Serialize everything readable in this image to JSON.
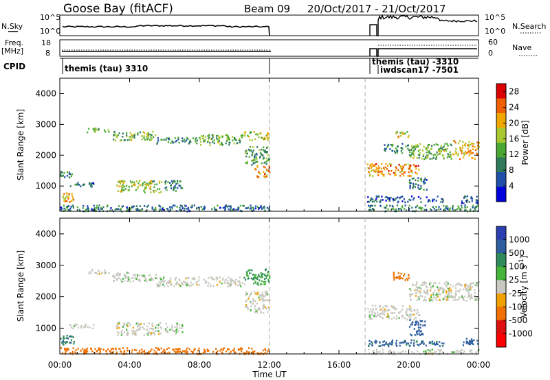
{
  "header": {
    "station": "Goose Bay (fitACF)",
    "beam": "Beam 09",
    "dates": "20/Oct/2017 - 21/Oct/2017"
  },
  "strip_noise": {
    "left_label": "N.Sky",
    "left_ticks": [
      "10^5",
      "10^0"
    ],
    "right_label": "N.Search",
    "right_ticks": [
      "10^5",
      "10^0"
    ]
  },
  "strip_freq": {
    "left_label_1": "Freq.",
    "left_label_2": "[MHz]",
    "left_ticks": [
      "18",
      "8"
    ],
    "right_label": "Nave",
    "right_ticks": [
      "60",
      "0"
    ]
  },
  "cpid": {
    "label": "CPID",
    "entries": [
      "themis (tau) 3310",
      "themis (tau) -3310",
      "iwdscan17 -7501"
    ]
  },
  "colors": {
    "power": [
      "#0000dd",
      "#1f4fa8",
      "#2f7a5a",
      "#4aa832",
      "#a8c832",
      "#f0a800",
      "#f06000",
      "#dd0000"
    ],
    "velocity": [
      "#2a3fb0",
      "#2f5ea0",
      "#2e8a5a",
      "#44b53a",
      "#c8c8c0",
      "#c8c8c0",
      "#f0a000",
      "#f07000",
      "#dd1010",
      "#ff0000"
    ]
  },
  "chart_data": [
    {
      "type": "heatmap",
      "title": "",
      "xlabel": "",
      "ylabel": "Slant Range [km]",
      "x_ticks": [
        "00:00",
        "04:00",
        "08:00",
        "12:00",
        "16:00",
        "20:00",
        "00:00"
      ],
      "xlim": [
        0,
        24
      ],
      "y_ticks": [
        "1000",
        "2000",
        "3000",
        "4000"
      ],
      "ylim": [
        180,
        4500
      ],
      "data_gap": [
        12,
        17.5
      ],
      "colorbar": {
        "label": "Power [dB]",
        "ticks": [
          "4",
          "8",
          "12",
          "16",
          "20",
          "24",
          "28"
        ],
        "range": [
          0,
          30
        ]
      },
      "regions": [
        {
          "t": [
            1.5,
            2.8
          ],
          "r": [
            2750,
            2900
          ],
          "v": 12
        },
        {
          "t": [
            3.0,
            5.5
          ],
          "r": [
            2500,
            2800
          ],
          "v": 14
        },
        {
          "t": [
            5.5,
            8.0
          ],
          "r": [
            2400,
            2600
          ],
          "v": 10
        },
        {
          "t": [
            8.0,
            10.5
          ],
          "r": [
            2350,
            2700
          ],
          "v": 14
        },
        {
          "t": [
            10.5,
            12.0
          ],
          "r": [
            2500,
            2800
          ],
          "v": 18
        },
        {
          "t": [
            10.6,
            12.0
          ],
          "r": [
            1700,
            2300
          ],
          "v": 12
        },
        {
          "t": [
            11.0,
            12.0
          ],
          "r": [
            1300,
            1700
          ],
          "v": 22
        },
        {
          "t": [
            0.0,
            0.7
          ],
          "r": [
            1300,
            1500
          ],
          "v": 10
        },
        {
          "t": [
            0.5,
            2.0
          ],
          "r": [
            1000,
            1150
          ],
          "v": 8
        },
        {
          "t": [
            3.2,
            5.8
          ],
          "r": [
            800,
            1200
          ],
          "v": 16
        },
        {
          "t": [
            6.0,
            7.0
          ],
          "r": [
            850,
            1200
          ],
          "v": 10
        },
        {
          "t": [
            0.0,
            0.8
          ],
          "r": [
            500,
            800
          ],
          "v": 20
        },
        {
          "t": [
            0.0,
            12.0
          ],
          "r": [
            200,
            400
          ],
          "v": 8
        },
        {
          "t": [
            17.6,
            20.6
          ],
          "r": [
            1350,
            1750
          ],
          "v": 22
        },
        {
          "t": [
            19.1,
            20.0
          ],
          "r": [
            2600,
            2800
          ],
          "v": 18
        },
        {
          "t": [
            18.5,
            20.0
          ],
          "r": [
            2100,
            2400
          ],
          "v": 10
        },
        {
          "t": [
            20.0,
            22.5
          ],
          "r": [
            1900,
            2400
          ],
          "v": 14
        },
        {
          "t": [
            22.5,
            24.0
          ],
          "r": [
            1900,
            2500
          ],
          "v": 20
        },
        {
          "t": [
            20.0,
            21.0
          ],
          "r": [
            900,
            1300
          ],
          "v": 8
        },
        {
          "t": [
            17.6,
            22.0
          ],
          "r": [
            500,
            700
          ],
          "v": 6
        },
        {
          "t": [
            23.0,
            24.0
          ],
          "r": [
            400,
            700
          ],
          "v": 6
        },
        {
          "t": [
            17.6,
            24.0
          ],
          "r": [
            200,
            400
          ],
          "v": 10
        }
      ]
    },
    {
      "type": "heatmap",
      "title": "",
      "xlabel": "Time UT",
      "ylabel": "Slant Range [km]",
      "x_ticks": [
        "00:00",
        "04:00",
        "08:00",
        "12:00",
        "16:00",
        "20:00",
        "00:00"
      ],
      "xlim": [
        0,
        24
      ],
      "y_ticks": [
        "1000",
        "2000",
        "3000",
        "4000"
      ],
      "ylim": [
        180,
        4500
      ],
      "data_gap": [
        12,
        17.5
      ],
      "colorbar": {
        "label": "Velocity [m s^-1]",
        "ticks": [
          "1000",
          "500",
          "100",
          "25",
          "-25",
          "-100",
          "-500",
          "-1000"
        ],
        "levels": [
          1000,
          500,
          100,
          25,
          -25,
          -100,
          -500,
          -1000
        ]
      },
      "regions": [
        {
          "t": [
            1.5,
            2.8
          ],
          "r": [
            2750,
            2900
          ],
          "v": 0
        },
        {
          "t": [
            3.0,
            5.5
          ],
          "r": [
            2500,
            2800
          ],
          "v": 10
        },
        {
          "t": [
            5.5,
            10.5
          ],
          "r": [
            2350,
            2650
          ],
          "v": 0
        },
        {
          "t": [
            10.5,
            12.0
          ],
          "r": [
            2400,
            2900
          ],
          "v": 50
        },
        {
          "t": [
            10.6,
            12.0
          ],
          "r": [
            1500,
            2200
          ],
          "v": 0
        },
        {
          "t": [
            0.5,
            2.0
          ],
          "r": [
            1000,
            1150
          ],
          "v": 0
        },
        {
          "t": [
            3.2,
            5.8
          ],
          "r": [
            800,
            1200
          ],
          "v": 0
        },
        {
          "t": [
            6.0,
            7.0
          ],
          "r": [
            850,
            1200
          ],
          "v": 10
        },
        {
          "t": [
            0.0,
            0.8
          ],
          "r": [
            500,
            800
          ],
          "v": 80
        },
        {
          "t": [
            0.0,
            12.0
          ],
          "r": [
            200,
            400
          ],
          "v": -150
        },
        {
          "t": [
            17.6,
            20.6
          ],
          "r": [
            1300,
            1750
          ],
          "v": 0
        },
        {
          "t": [
            19.1,
            20.0
          ],
          "r": [
            2550,
            2800
          ],
          "v": -200
        },
        {
          "t": [
            20.0,
            24.0
          ],
          "r": [
            1900,
            2500
          ],
          "v": 0
        },
        {
          "t": [
            20.0,
            21.0
          ],
          "r": [
            800,
            1300
          ],
          "v": 200
        },
        {
          "t": [
            17.6,
            22.0
          ],
          "r": [
            450,
            650
          ],
          "v": 120
        },
        {
          "t": [
            23.0,
            24.0
          ],
          "r": [
            450,
            700
          ],
          "v": 150
        },
        {
          "t": [
            17.6,
            24.0
          ],
          "r": [
            200,
            350
          ],
          "v": 0
        }
      ]
    }
  ]
}
